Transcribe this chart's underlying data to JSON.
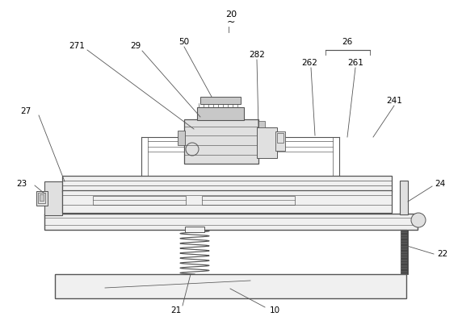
{
  "bg_color": "#ffffff",
  "lc": "#555555",
  "lc_dark": "#333333",
  "fc_light": "#f0f0f0",
  "fc_mid": "#e0e0e0",
  "fc_dark": "#c8c8c8",
  "label_fs": 7.5,
  "label_color": "#000000"
}
